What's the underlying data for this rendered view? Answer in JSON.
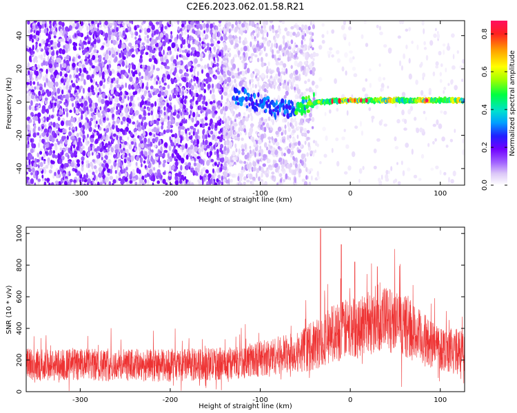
{
  "title": "C2E6.2023.062.01.58.R21",
  "chart_data": [
    {
      "type": "heatmap",
      "xlabel": "Height of straight line (km)",
      "ylabel": "Frequency (Hz)",
      "xlim": [
        -360,
        127
      ],
      "ylim": [
        -50,
        49
      ],
      "x_ticks": [
        -300,
        -200,
        -100,
        0,
        100
      ],
      "y_ticks": [
        -40,
        -20,
        0,
        20,
        40
      ],
      "colorbar": {
        "label": "Normalized spectral amplitude",
        "range": [
          0.0,
          0.87
        ],
        "ticks": [
          0.0,
          0.2,
          0.4,
          0.6,
          0.8
        ],
        "colormap": [
          "#ffffff",
          "#dcc8f8",
          "#a060ff",
          "#7000ff",
          "#2020ff",
          "#00a0ff",
          "#00e0d0",
          "#00ff40",
          "#a0ff00",
          "#ffff00",
          "#ffa000",
          "#ff2020",
          "#ff1060"
        ]
      },
      "features": [
        {
          "description_id": "noise-field",
          "x_range": [
            -360,
            -140
          ],
          "amplitude": [
            0.05,
            0.2
          ]
        },
        {
          "description_id": "decaying-noise",
          "x_range": [
            -140,
            -40
          ],
          "amplitude": [
            0.02,
            0.1
          ]
        },
        {
          "description_id": "carrier-line",
          "x_range": [
            -130,
            127
          ],
          "frequency_hz": [
            5,
            -5,
            0,
            1,
            1,
            1
          ],
          "frequency_x": [
            -130,
            -80,
            -40,
            0,
            60,
            127
          ],
          "peak_amplitude": 0.87
        }
      ]
    },
    {
      "type": "line",
      "xlabel": "Height of straight line (km)",
      "ylabel": "SNR (10 * v/v)",
      "xlim": [
        -360,
        127
      ],
      "ylim": [
        0,
        1040
      ],
      "x_ticks": [
        -300,
        -200,
        -100,
        0,
        100
      ],
      "y_ticks": [
        0,
        200,
        400,
        600,
        800,
        1000
      ],
      "color": "#ee3333",
      "envelope": {
        "x": [
          -360,
          -300,
          -200,
          -130,
          -100,
          -60,
          -40,
          -30,
          -20,
          0,
          20,
          40,
          60,
          80,
          100,
          127
        ],
        "mean": [
          170,
          170,
          165,
          180,
          210,
          250,
          290,
          330,
          370,
          400,
          440,
          460,
          420,
          330,
          280,
          250
        ],
        "spread": [
          90,
          90,
          90,
          90,
          100,
          110,
          140,
          150,
          160,
          170,
          180,
          180,
          170,
          150,
          130,
          120
        ],
        "peaks": [
          {
            "x": -33,
            "y": 1030
          },
          {
            "x": -10,
            "y": 930
          },
          {
            "x": 5,
            "y": 820
          },
          {
            "x": 30,
            "y": 790
          }
        ]
      }
    }
  ]
}
